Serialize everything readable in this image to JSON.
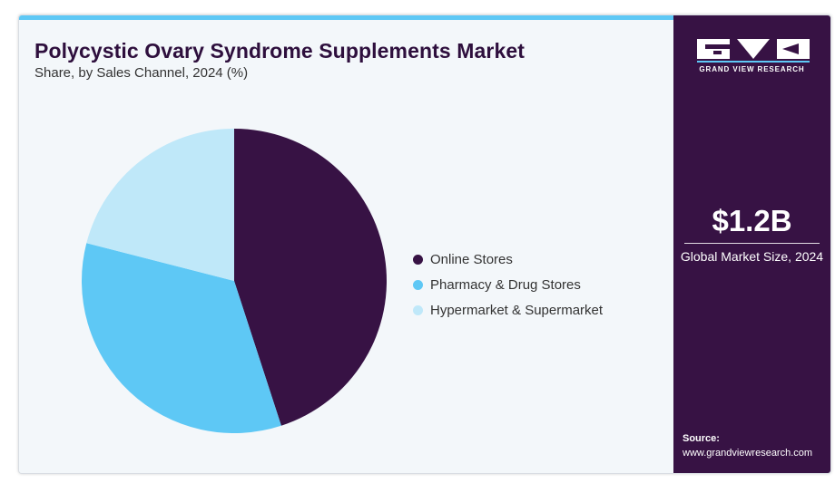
{
  "header": {
    "title": "Polycystic Ovary Syndrome Supplements Market",
    "subtitle": "Share, by Sales Channel, 2024 (%)"
  },
  "chart_data": {
    "type": "pie",
    "title": "Polycystic Ovary Syndrome Supplements Market",
    "subtitle": "Share, by Sales Channel, 2024 (%)",
    "categories": [
      "Online Stores",
      "Pharmacy & Drug Stores",
      "Hypermarket & Supermarket"
    ],
    "values": [
      45,
      34,
      21
    ],
    "colors": [
      "#371244",
      "#5ec8f5",
      "#bfe8f9"
    ],
    "start_angle_deg": 0,
    "direction": "clockwise",
    "legend_position": "right"
  },
  "sidebar": {
    "brand_name": "GRAND VIEW RESEARCH",
    "metric_value": "$1.2B",
    "metric_label": "Global Market Size, 2024",
    "source_label": "Source:",
    "source_url": "www.grandviewresearch.com"
  },
  "colors": {
    "accent_bar": "#5ec8f5",
    "sidebar_bg": "#371244",
    "panel_bg": "#f3f7fa",
    "title_color": "#2e0f3d"
  }
}
